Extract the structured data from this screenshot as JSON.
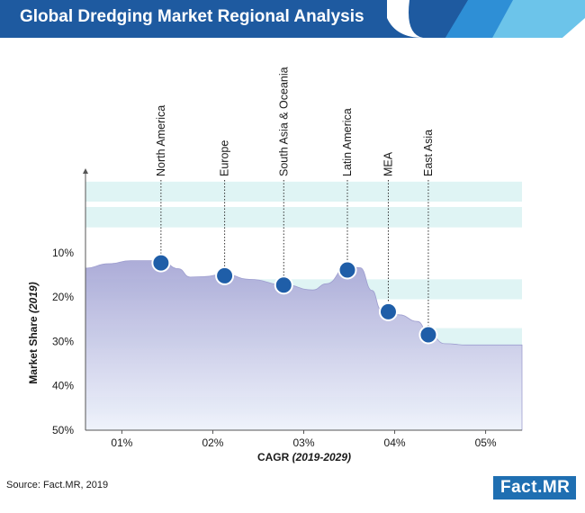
{
  "header": {
    "title": "Global Dredging Market Regional Analysis"
  },
  "colors": {
    "header_bg": "#1e5aa0",
    "header_accent1": "#2e8fd6",
    "header_accent2": "#6cc4ea",
    "band": "#dff4f4",
    "area_top": "#a8a8d6",
    "area_bottom": "#eef2fb",
    "marker": "#1f5ea8",
    "marker_stroke": "#ffffff"
  },
  "chart_data": {
    "type": "scatter",
    "title": "Global Dredging Market Regional Analysis",
    "xlabel_main": "CAGR",
    "xlabel_sub": "(2019-2029)",
    "ylabel_main": "Market Share",
    "ylabel_sub": "(2019)",
    "x_ticks": [
      1,
      2,
      3,
      4,
      5
    ],
    "x_tick_labels": [
      "01%",
      "02%",
      "03%",
      "04%",
      "05%"
    ],
    "y_ticks": [
      10,
      20,
      30,
      40,
      50
    ],
    "y_tick_labels": [
      "10%",
      "20%",
      "30%",
      "40%",
      "50%"
    ],
    "xlim": [
      0.6,
      5.4
    ],
    "ylim": [
      50,
      -8
    ],
    "bands": [
      [
        -6,
        -1.5
      ],
      [
        -0.3,
        4.3
      ],
      [
        16,
        20.5
      ],
      [
        27,
        31.5
      ],
      [
        42.5,
        46.5
      ]
    ],
    "points": [
      {
        "label": "North America",
        "x": 1.43,
        "y": 12.3
      },
      {
        "label": "Europe",
        "x": 2.13,
        "y": 15.2
      },
      {
        "label": "South Asia & Oceania",
        "x": 2.78,
        "y": 17.3
      },
      {
        "label": "Latin America",
        "x": 3.48,
        "y": 13.9
      },
      {
        "label": "MEA",
        "x": 3.93,
        "y": 23.3
      },
      {
        "label": "East Asia",
        "x": 4.37,
        "y": 28.5
      }
    ],
    "area_profile": [
      [
        0.6,
        13.5
      ],
      [
        0.85,
        12.5
      ],
      [
        1.1,
        11.8
      ],
      [
        1.43,
        11.8
      ],
      [
        1.62,
        13.6
      ],
      [
        1.75,
        15.5
      ],
      [
        1.9,
        15.4
      ],
      [
        2.13,
        14.8
      ],
      [
        2.4,
        16.0
      ],
      [
        2.78,
        17.2
      ],
      [
        3.1,
        18.4
      ],
      [
        3.25,
        17.0
      ],
      [
        3.48,
        13.0
      ],
      [
        3.62,
        13.4
      ],
      [
        3.75,
        18.5
      ],
      [
        3.85,
        22.8
      ],
      [
        4.05,
        24.0
      ],
      [
        4.25,
        25.5
      ],
      [
        4.37,
        28.0
      ],
      [
        4.55,
        30.5
      ],
      [
        4.8,
        30.8
      ],
      [
        5.4,
        30.8
      ]
    ]
  },
  "source": "Source: Fact.MR, 2019",
  "logo": {
    "text": "Fact.MR"
  }
}
